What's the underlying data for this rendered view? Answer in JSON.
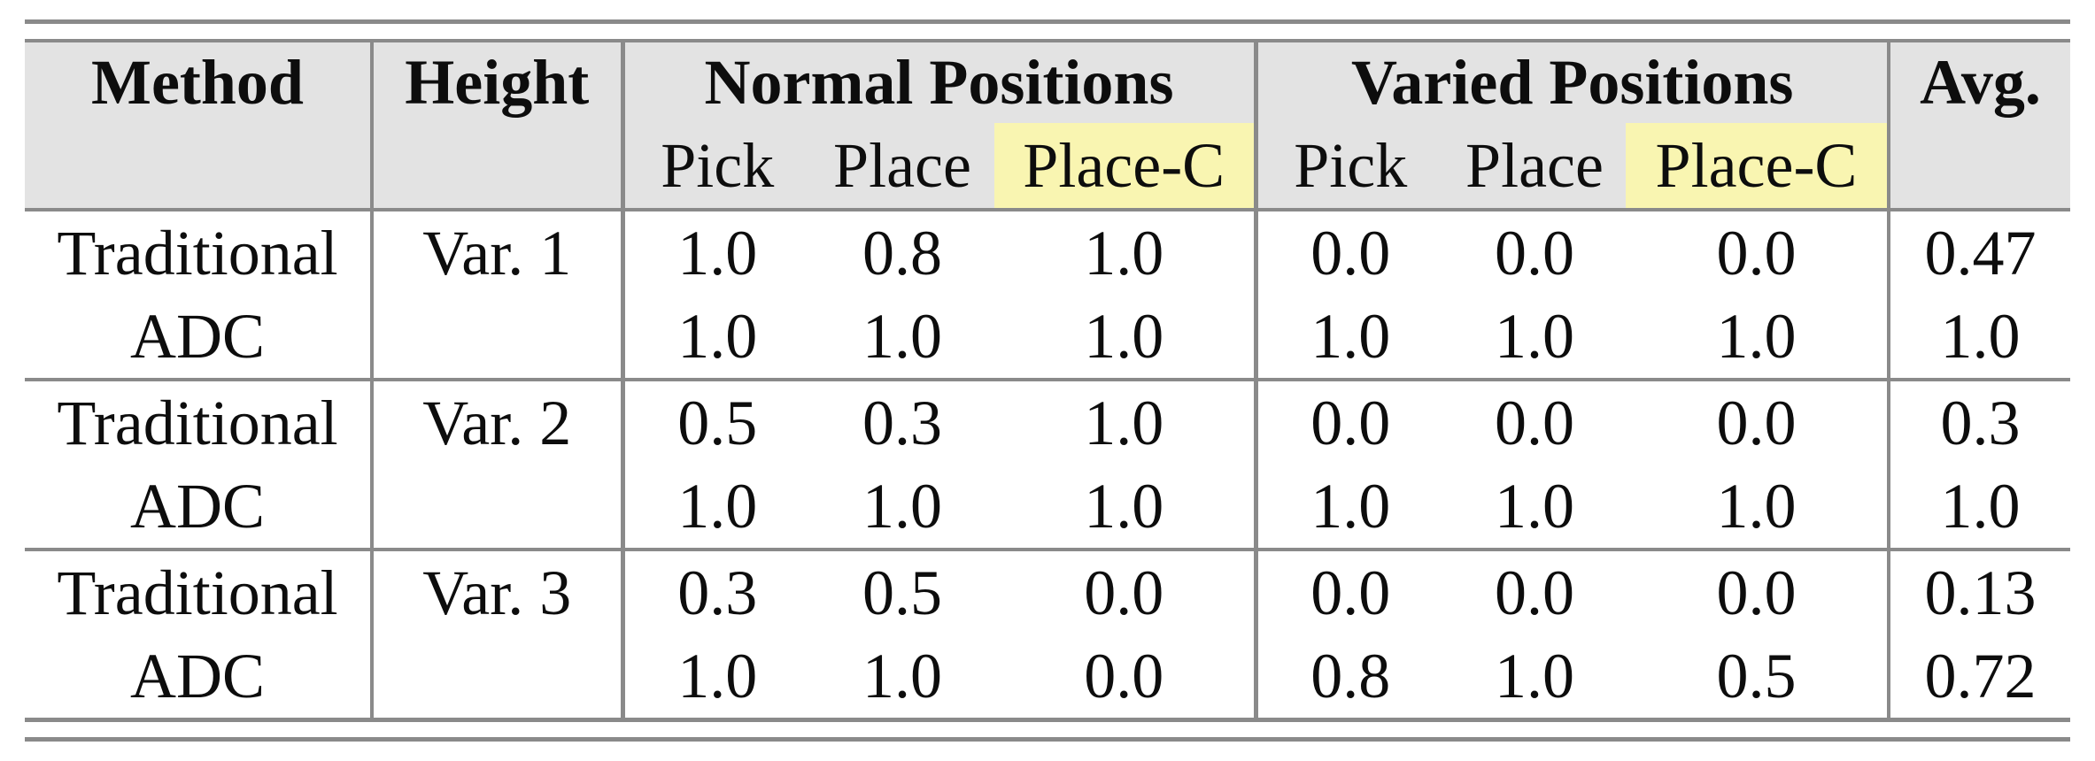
{
  "colors": {
    "rule_gray": "#8a8a8a",
    "header_background": "#e3e3e3",
    "highlight_yellow": "#f9f5b1"
  },
  "header": {
    "method": "Method",
    "height": "Height",
    "normal_positions": "Normal Positions",
    "varied_positions": "Varied Positions",
    "avg": "Avg.",
    "normal_sub": [
      "Pick",
      "Place",
      "Place-C"
    ],
    "varied_sub": [
      "Pick",
      "Place",
      "Place-C"
    ]
  },
  "groups": [
    {
      "height": "Var. 1",
      "rows": [
        {
          "method": "Traditional",
          "normal": [
            "1.0",
            "0.8",
            "1.0"
          ],
          "varied": [
            "0.0",
            "0.0",
            "0.0"
          ],
          "avg": "0.47"
        },
        {
          "method": "ADC",
          "normal": [
            "1.0",
            "1.0",
            "1.0"
          ],
          "varied": [
            "1.0",
            "1.0",
            "1.0"
          ],
          "avg": "1.0"
        }
      ]
    },
    {
      "height": "Var. 2",
      "rows": [
        {
          "method": "Traditional",
          "normal": [
            "0.5",
            "0.3",
            "1.0"
          ],
          "varied": [
            "0.0",
            "0.0",
            "0.0"
          ],
          "avg": "0.3"
        },
        {
          "method": "ADC",
          "normal": [
            "1.0",
            "1.0",
            "1.0"
          ],
          "varied": [
            "1.0",
            "1.0",
            "1.0"
          ],
          "avg": "1.0"
        }
      ]
    },
    {
      "height": "Var. 3",
      "rows": [
        {
          "method": "Traditional",
          "normal": [
            "0.3",
            "0.5",
            "0.0"
          ],
          "varied": [
            "0.0",
            "0.0",
            "0.0"
          ],
          "avg": "0.13"
        },
        {
          "method": "ADC",
          "normal": [
            "1.0",
            "1.0",
            "0.0"
          ],
          "varied": [
            "0.8",
            "1.0",
            "0.5"
          ],
          "avg": "0.72"
        }
      ]
    }
  ],
  "chart_data": {
    "type": "table",
    "columns": [
      "Method",
      "Height",
      "Normal Pick",
      "Normal Place",
      "Normal Place-C",
      "Varied Pick",
      "Varied Place",
      "Varied Place-C",
      "Avg."
    ],
    "rows": [
      [
        "Traditional",
        "Var. 1",
        "1.0",
        "0.8",
        "1.0",
        "0.0",
        "0.0",
        "0.0",
        "0.47"
      ],
      [
        "ADC",
        "Var. 1",
        "1.0",
        "1.0",
        "1.0",
        "1.0",
        "1.0",
        "1.0",
        "1.0"
      ],
      [
        "Traditional",
        "Var. 2",
        "0.5",
        "0.3",
        "1.0",
        "0.0",
        "0.0",
        "0.0",
        "0.3"
      ],
      [
        "ADC",
        "Var. 2",
        "1.0",
        "1.0",
        "1.0",
        "1.0",
        "1.0",
        "1.0",
        "1.0"
      ],
      [
        "Traditional",
        "Var. 3",
        "0.3",
        "0.5",
        "0.0",
        "0.0",
        "0.0",
        "0.0",
        "0.13"
      ],
      [
        "ADC",
        "Var. 3",
        "1.0",
        "1.0",
        "0.0",
        "0.8",
        "1.0",
        "0.5",
        "0.72"
      ]
    ],
    "highlighted_columns": [
      "Normal Place-C",
      "Varied Place-C"
    ]
  }
}
